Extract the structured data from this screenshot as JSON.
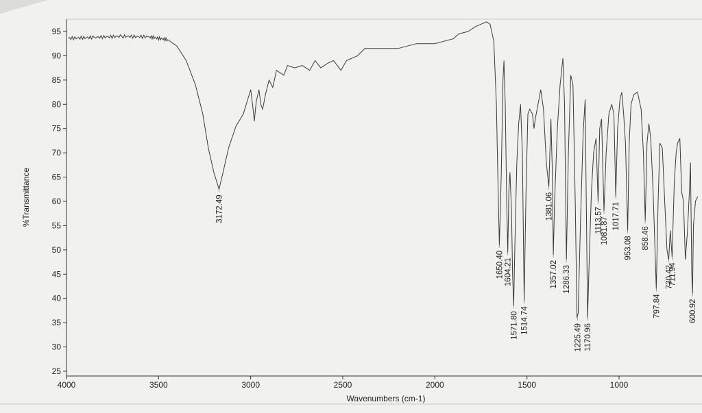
{
  "chart_data": {
    "type": "line",
    "title": "",
    "xlabel": "Wavenumbers (cm-1)",
    "ylabel": "%Transmittance",
    "xlim": [
      4000,
      500
    ],
    "ylim": [
      25,
      97
    ],
    "x_ticks": [
      4000,
      3500,
      3000,
      2500,
      2000,
      1500,
      1000
    ],
    "y_ticks": [
      25,
      30,
      35,
      40,
      45,
      50,
      55,
      60,
      65,
      70,
      75,
      80,
      85,
      90,
      95
    ],
    "grid": false,
    "series": [
      {
        "points": [
          [
            3990,
            93.6
          ],
          [
            3850,
            93.8
          ],
          [
            3700,
            94.0
          ],
          [
            3550,
            93.9
          ],
          [
            3450,
            93.3
          ],
          [
            3400,
            92.0
          ],
          [
            3350,
            89.0
          ],
          [
            3300,
            84.0
          ],
          [
            3260,
            78.0
          ],
          [
            3230,
            71.0
          ],
          [
            3200,
            66.0
          ],
          [
            3172,
            62.5
          ],
          [
            3150,
            66.0
          ],
          [
            3120,
            71.0
          ],
          [
            3080,
            75.5
          ],
          [
            3040,
            78.0
          ],
          [
            3020,
            80.5
          ],
          [
            3000,
            83.0
          ],
          [
            2990,
            80.0
          ],
          [
            2980,
            76.5
          ],
          [
            2970,
            80.5
          ],
          [
            2955,
            83.0
          ],
          [
            2945,
            80.0
          ],
          [
            2935,
            79.0
          ],
          [
            2920,
            82.0
          ],
          [
            2900,
            85.0
          ],
          [
            2880,
            83.5
          ],
          [
            2860,
            87.0
          ],
          [
            2820,
            86.0
          ],
          [
            2800,
            88.0
          ],
          [
            2760,
            87.5
          ],
          [
            2720,
            88.0
          ],
          [
            2680,
            87.0
          ],
          [
            2650,
            89.0
          ],
          [
            2620,
            87.5
          ],
          [
            2580,
            88.5
          ],
          [
            2550,
            89.0
          ],
          [
            2510,
            87.0
          ],
          [
            2480,
            89.0
          ],
          [
            2420,
            90.0
          ],
          [
            2380,
            91.5
          ],
          [
            2300,
            91.5
          ],
          [
            2200,
            91.5
          ],
          [
            2100,
            92.5
          ],
          [
            2000,
            92.5
          ],
          [
            1950,
            93.0
          ],
          [
            1900,
            93.5
          ],
          [
            1870,
            94.5
          ],
          [
            1820,
            95.0
          ],
          [
            1780,
            96.0
          ],
          [
            1720,
            97.0
          ],
          [
            1700,
            96.5
          ],
          [
            1680,
            93.0
          ],
          [
            1666,
            80.0
          ],
          [
            1658,
            65.0
          ],
          [
            1650,
            51.0
          ],
          [
            1640,
            65.0
          ],
          [
            1630,
            85.0
          ],
          [
            1625,
            89.0
          ],
          [
            1618,
            80.0
          ],
          [
            1610,
            60.0
          ],
          [
            1604,
            49.5
          ],
          [
            1598,
            62.0
          ],
          [
            1592,
            66.0
          ],
          [
            1584,
            58.0
          ],
          [
            1578,
            45.0
          ],
          [
            1572,
            38.5
          ],
          [
            1565,
            52.0
          ],
          [
            1555,
            68.0
          ],
          [
            1545,
            76.0
          ],
          [
            1535,
            80.0
          ],
          [
            1525,
            70.0
          ],
          [
            1515,
            39.5
          ],
          [
            1505,
            62.0
          ],
          [
            1495,
            78.0
          ],
          [
            1485,
            79.0
          ],
          [
            1470,
            78.0
          ],
          [
            1462,
            75.0
          ],
          [
            1455,
            77.0
          ],
          [
            1440,
            80.0
          ],
          [
            1425,
            83.0
          ],
          [
            1410,
            79.0
          ],
          [
            1395,
            68.0
          ],
          [
            1381,
            63.0
          ],
          [
            1370,
            77.0
          ],
          [
            1362,
            66.0
          ],
          [
            1357,
            49.0
          ],
          [
            1350,
            60.0
          ],
          [
            1335,
            75.0
          ],
          [
            1320,
            84.0
          ],
          [
            1305,
            89.5
          ],
          [
            1296,
            80.0
          ],
          [
            1286,
            48.0
          ],
          [
            1275,
            70.0
          ],
          [
            1262,
            86.0
          ],
          [
            1250,
            84.0
          ],
          [
            1238,
            60.0
          ],
          [
            1228,
            36.0
          ],
          [
            1222,
            37.0
          ],
          [
            1210,
            55.0
          ],
          [
            1195,
            74.0
          ],
          [
            1184,
            81.0
          ],
          [
            1178,
            60.0
          ],
          [
            1171,
            36.0
          ],
          [
            1162,
            48.0
          ],
          [
            1150,
            62.0
          ],
          [
            1138,
            70.0
          ],
          [
            1125,
            73.0
          ],
          [
            1114,
            60.0
          ],
          [
            1105,
            75.0
          ],
          [
            1095,
            77.0
          ],
          [
            1082,
            58.0
          ],
          [
            1070,
            70.0
          ],
          [
            1055,
            78.0
          ],
          [
            1040,
            80.0
          ],
          [
            1028,
            78.0
          ],
          [
            1018,
            61.0
          ],
          [
            1008,
            75.0
          ],
          [
            995,
            81.0
          ],
          [
            985,
            82.5
          ],
          [
            975,
            78.0
          ],
          [
            965,
            72.0
          ],
          [
            953,
            54.0
          ],
          [
            945,
            72.0
          ],
          [
            935,
            80.0
          ],
          [
            920,
            82.0
          ],
          [
            900,
            82.5
          ],
          [
            880,
            79.0
          ],
          [
            868,
            70.0
          ],
          [
            858,
            56.0
          ],
          [
            848,
            72.0
          ],
          [
            838,
            76.0
          ],
          [
            828,
            73.0
          ],
          [
            815,
            62.0
          ],
          [
            798,
            42.0
          ],
          [
            788,
            60.0
          ],
          [
            778,
            72.0
          ],
          [
            765,
            71.0
          ],
          [
            752,
            60.0
          ],
          [
            740,
            50.0
          ],
          [
            730,
            48.0
          ],
          [
            722,
            54.0
          ],
          [
            712,
            48.5
          ],
          [
            700,
            64.0
          ],
          [
            690,
            70.0
          ],
          [
            682,
            72.0
          ],
          [
            670,
            73.0
          ],
          [
            660,
            62.0
          ],
          [
            650,
            60.0
          ],
          [
            640,
            48.0
          ],
          [
            628,
            54.0
          ],
          [
            618,
            62.0
          ],
          [
            612,
            68.0
          ],
          [
            605,
            45.0
          ],
          [
            601,
            41.0
          ],
          [
            596,
            55.0
          ],
          [
            585,
            60.0
          ],
          [
            573,
            61.0
          ]
        ]
      }
    ],
    "peak_labels": [
      {
        "x": 3172.49,
        "y": 62.5,
        "text": "3172.49"
      },
      {
        "x": 1650.4,
        "y": 51.0,
        "text": "1650.40"
      },
      {
        "x": 1604.21,
        "y": 49.5,
        "text": "1604.21"
      },
      {
        "x": 1571.8,
        "y": 38.5,
        "text": "1571.80"
      },
      {
        "x": 1514.74,
        "y": 39.5,
        "text": "1514.74"
      },
      {
        "x": 1381.06,
        "y": 63.0,
        "text": "1381.06"
      },
      {
        "x": 1357.02,
        "y": 49.0,
        "text": "1357.02"
      },
      {
        "x": 1286.33,
        "y": 48.0,
        "text": "1286.33"
      },
      {
        "x": 1225.49,
        "y": 36.0,
        "text": "1225.49"
      },
      {
        "x": 1170.96,
        "y": 36.0,
        "text": "1170.96"
      },
      {
        "x": 1113.57,
        "y": 60.0,
        "text": "1113.57"
      },
      {
        "x": 1081.87,
        "y": 58.0,
        "text": "1081.87"
      },
      {
        "x": 1017.71,
        "y": 61.0,
        "text": "1017.71"
      },
      {
        "x": 953.08,
        "y": 54.0,
        "text": "953.08"
      },
      {
        "x": 858.46,
        "y": 56.0,
        "text": "858.46"
      },
      {
        "x": 797.84,
        "y": 42.0,
        "text": "797.84"
      },
      {
        "x": 730.42,
        "y": 48.0,
        "text": "730.42"
      },
      {
        "x": 711.94,
        "y": 48.5,
        "text": "711.94"
      },
      {
        "x": 600.92,
        "y": 41.0,
        "text": "600.92"
      }
    ]
  }
}
